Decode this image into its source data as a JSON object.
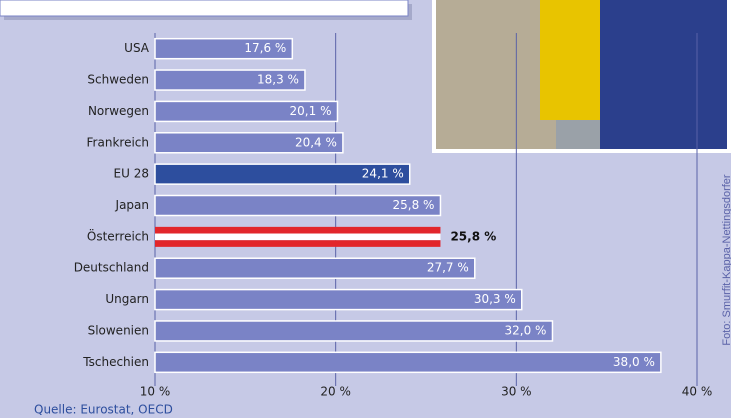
{
  "chart_data": {
    "type": "hbar",
    "categories": [
      "USA",
      "Schweden",
      "Norwegen",
      "Frankreich",
      "EU 28",
      "Japan",
      "Österreich",
      "Deutschland",
      "Ungarn",
      "Slowenien",
      "Tschechien"
    ],
    "values": [
      17.6,
      18.3,
      20.1,
      20.4,
      24.1,
      25.8,
      25.8,
      27.7,
      30.3,
      32.0,
      38.0
    ],
    "value_labels": [
      "17,6 %",
      "18,3 %",
      "20,1 %",
      "20,4 %",
      "24,1 %",
      "25,8 %",
      "25,8 %",
      "27,7 %",
      "30,3 %",
      "32,0 %",
      "38,0 %"
    ],
    "colors": [
      "#7a83c6",
      "#7a83c6",
      "#7a83c6",
      "#7a83c6",
      "#2d4e9e",
      "#7a83c6",
      [
        "#e2262b",
        "#ffffff",
        "#e2262b"
      ],
      "#7a83c6",
      "#7a83c6",
      "#7a83c6",
      "#7a83c6"
    ],
    "xlim": [
      10,
      40
    ],
    "xticks": [
      {
        "value": 10,
        "label": "10 %"
      },
      {
        "value": 20,
        "label": "20 %"
      },
      {
        "value": 30,
        "label": "30 %"
      },
      {
        "value": 40,
        "label": "40 %"
      }
    ],
    "grid": true,
    "source": "Quelle: Eurostat, OECD",
    "photo_credit": "Foto: Smurfit-Kappa-Nettingsdorfer"
  }
}
